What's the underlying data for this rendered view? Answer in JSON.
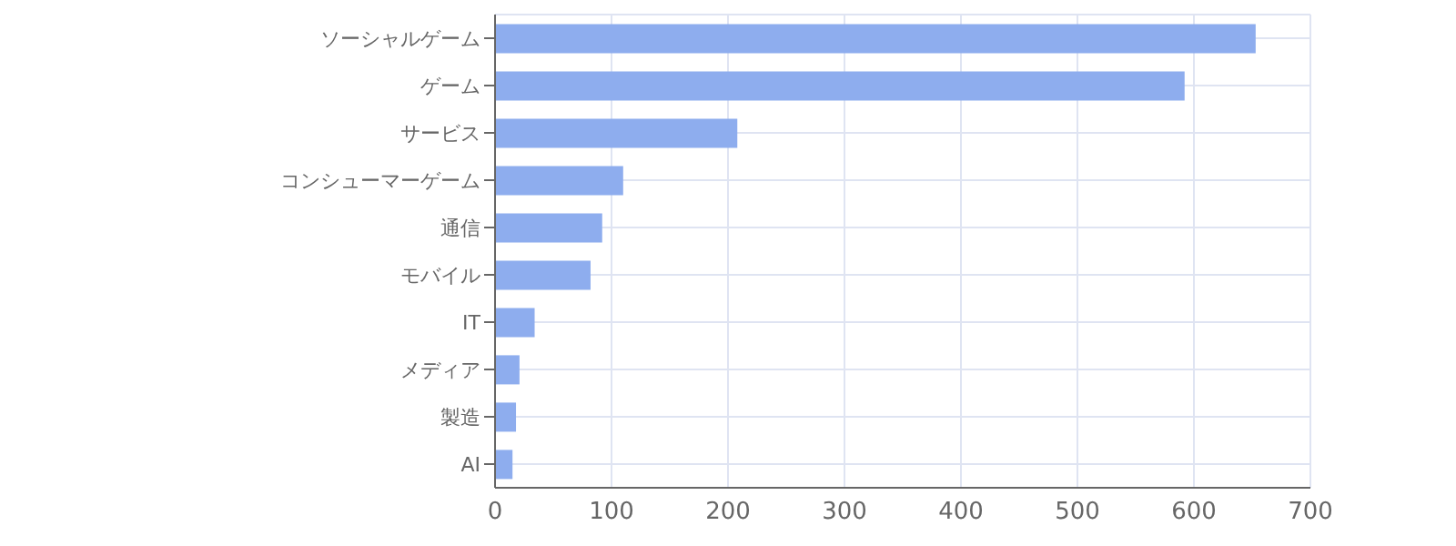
{
  "chart_data": {
    "type": "bar",
    "orientation": "horizontal",
    "categories": [
      "ソーシャルゲーム",
      "ゲーム",
      "サービス",
      "コンシューマーゲーム",
      "通信",
      "モバイル",
      "IT",
      "メディア",
      "製造",
      "AI"
    ],
    "values": [
      653,
      592,
      208,
      110,
      92,
      82,
      34,
      21,
      18,
      15
    ],
    "color": "#8eadee",
    "xlim": [
      0,
      700
    ],
    "xticks": [
      0,
      100,
      200,
      300,
      400,
      500,
      600,
      700
    ],
    "grid": true
  }
}
